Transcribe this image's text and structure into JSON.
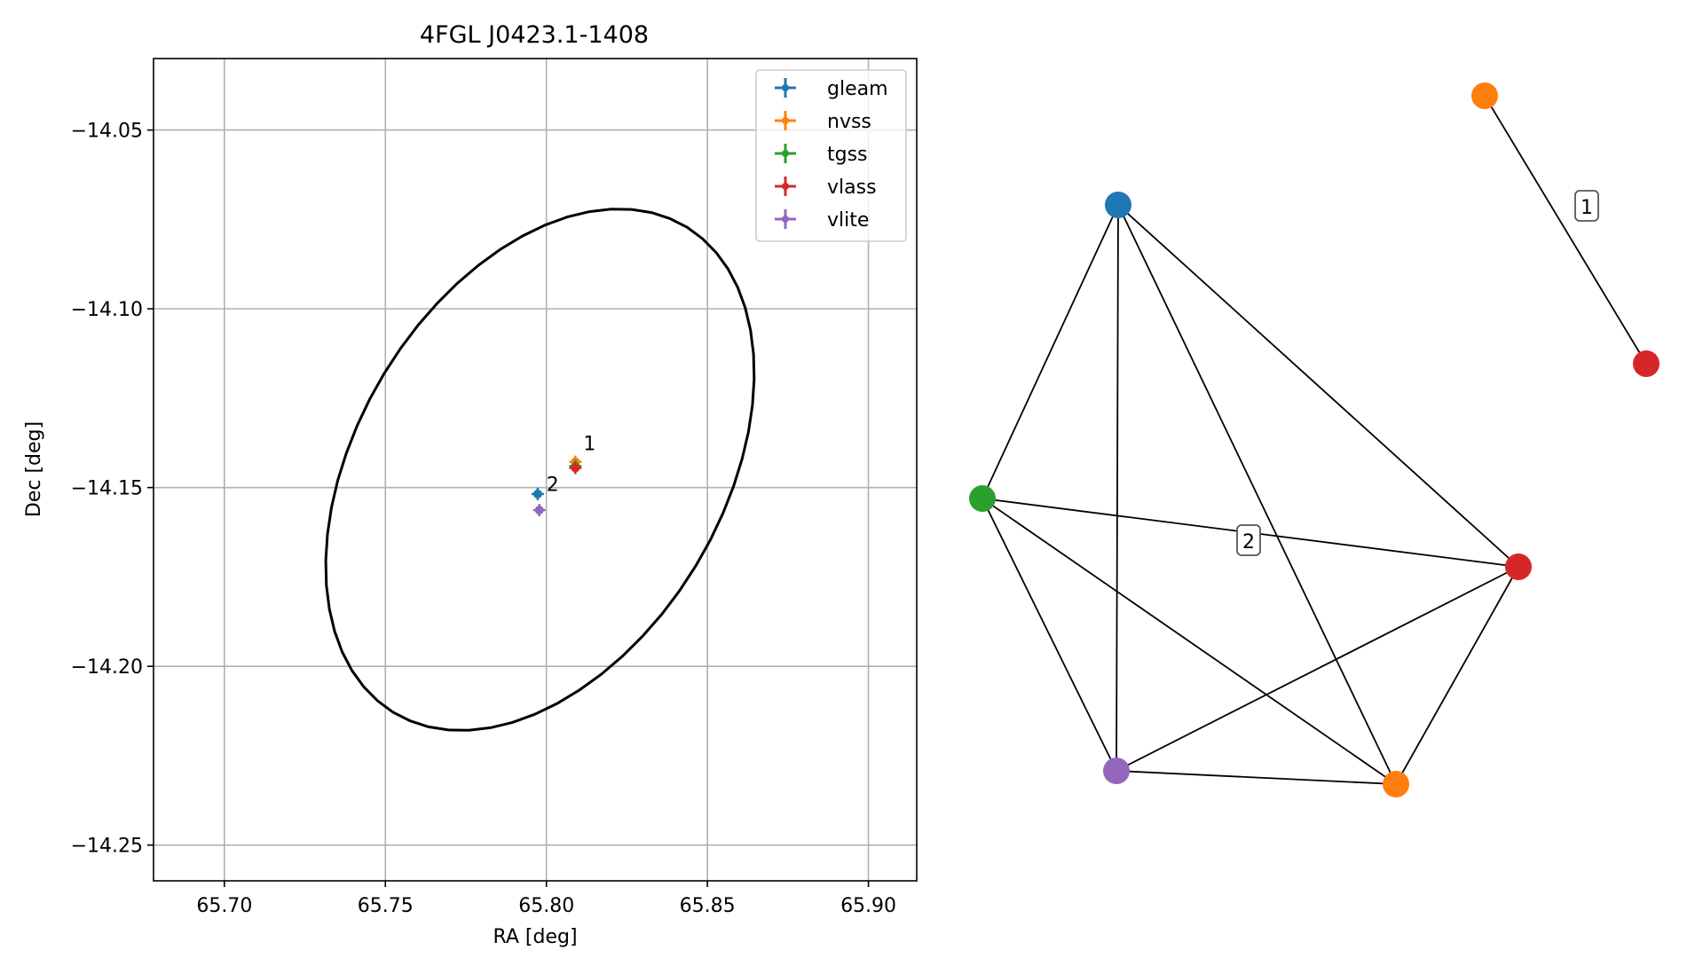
{
  "chart_data": [
    {
      "type": "scatter",
      "title": "4FGL J0423.1-1408",
      "xlabel": "RA [deg]",
      "ylabel": "Dec [deg]",
      "xlim": [
        65.678,
        65.915
      ],
      "ylim": [
        -14.26,
        -14.03
      ],
      "xticks": [
        65.7,
        65.75,
        65.8,
        65.85,
        65.9
      ],
      "xtick_labels": [
        "65.70",
        "65.75",
        "65.80",
        "65.85",
        "65.90"
      ],
      "yticks": [
        -14.05,
        -14.1,
        -14.15,
        -14.2,
        -14.25
      ],
      "ytick_labels": [
        "−14.05",
        "−14.10",
        "−14.15",
        "−14.20",
        "−14.25"
      ],
      "grid": true,
      "legend_position": "top-right",
      "ellipse": {
        "center": [
          65.798,
          -14.145
        ],
        "semi_axes_deg": [
          0.082,
          0.055
        ],
        "angle_deg": 52,
        "color": "#000000"
      },
      "series": [
        {
          "name": "gleam",
          "color": "#1f77b4",
          "points": [
            {
              "x": 65.7973,
              "y": -14.1518
            }
          ]
        },
        {
          "name": "nvss",
          "color": "#ff7f0e",
          "points": [
            {
              "x": 65.809,
              "y": -14.1428
            }
          ]
        },
        {
          "name": "tgss",
          "color": "#2ca02c",
          "points": [
            {
              "x": 65.809,
              "y": -14.144
            }
          ]
        },
        {
          "name": "vlass",
          "color": "#d62728",
          "points": [
            {
              "x": 65.809,
              "y": -14.1445
            }
          ]
        },
        {
          "name": "vlite",
          "color": "#9467bd",
          "points": [
            {
              "x": 65.7978,
              "y": -14.1563
            }
          ]
        }
      ],
      "annotations": [
        {
          "text": "1",
          "x": 65.8115,
          "y": -14.1395
        },
        {
          "text": "2",
          "x": 65.8,
          "y": -14.151
        }
      ]
    },
    {
      "type": "network",
      "edge_labels": [
        "1",
        "2"
      ]
    }
  ],
  "graph": {
    "nodes": [
      {
        "id": "n_gleam",
        "color": "#1f77b4"
      },
      {
        "id": "n_tgss",
        "color": "#2ca02c"
      },
      {
        "id": "n_vlite",
        "color": "#9467bd"
      },
      {
        "id": "n_nvss",
        "color": "#ff7f0e"
      },
      {
        "id": "n_vlass",
        "color": "#d62728"
      },
      {
        "id": "n_nvss_1",
        "color": "#ff7f0e"
      },
      {
        "id": "n_vlass_1",
        "color": "#d62728"
      }
    ],
    "edges": [
      [
        "n_gleam",
        "n_tgss"
      ],
      [
        "n_gleam",
        "n_vlite"
      ],
      [
        "n_gleam",
        "n_nvss"
      ],
      [
        "n_gleam",
        "n_vlass"
      ],
      [
        "n_tgss",
        "n_vlite"
      ],
      [
        "n_tgss",
        "n_nvss"
      ],
      [
        "n_tgss",
        "n_vlass"
      ],
      [
        "n_vlite",
        "n_nvss"
      ],
      [
        "n_vlite",
        "n_vlass"
      ],
      [
        "n_nvss",
        "n_vlass"
      ],
      [
        "n_nvss_1",
        "n_vlass_1"
      ]
    ],
    "edge_labels": [
      {
        "text": "1",
        "component": "1"
      },
      {
        "text": "2",
        "component": "2"
      }
    ]
  }
}
